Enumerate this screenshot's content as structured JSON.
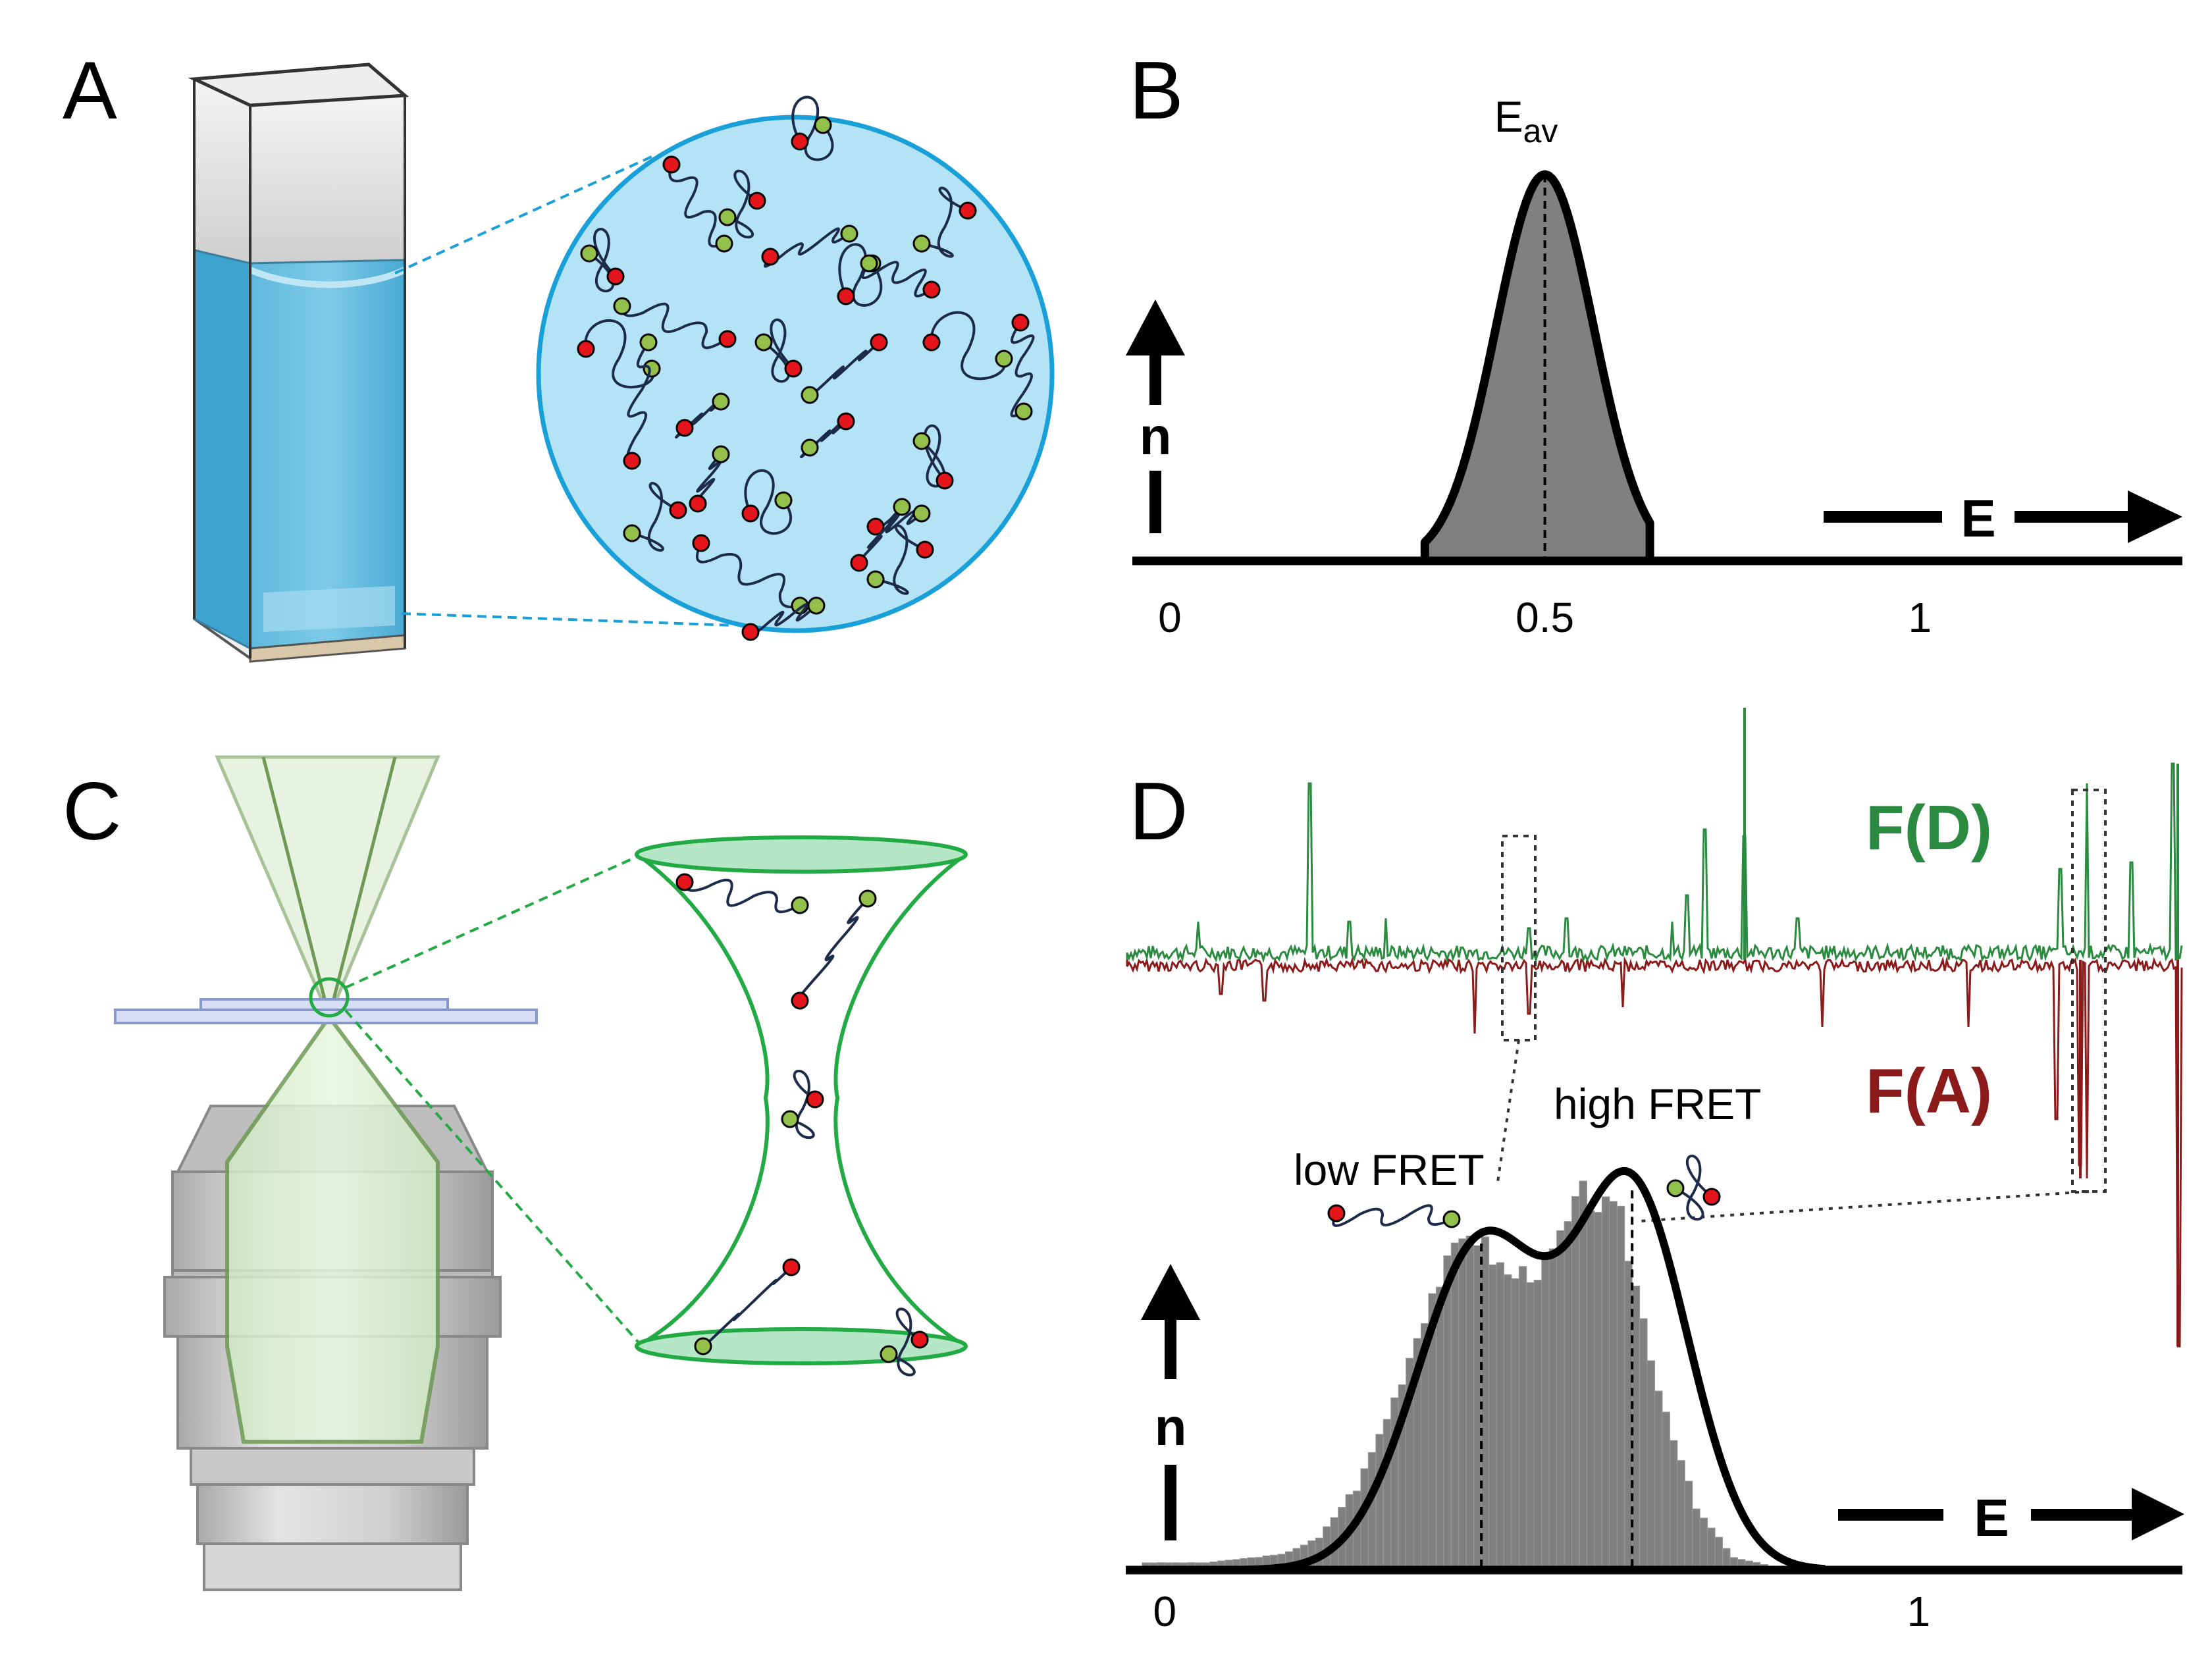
{
  "panels": {
    "a": {
      "label": "A"
    },
    "b": {
      "label": "B",
      "peak_label": "E",
      "peak_label_sub": "av",
      "y_axis": "n",
      "x_axis": "E",
      "ticks": [
        "0",
        "0.5",
        "1"
      ]
    },
    "c": {
      "label": "C"
    },
    "d": {
      "label": "D",
      "donor_trace": "F(D)",
      "acceptor_trace": "F(A)",
      "low_label": "low FRET",
      "high_label": "high FRET",
      "y_axis": "n",
      "x_axis": "E",
      "ticks": [
        "0",
        "1"
      ]
    }
  },
  "colors": {
    "donor": "#2a8a3f",
    "acceptor": "#8b1a1a",
    "solution": "#b3e3f4",
    "solution_edge": "#1aa0d8",
    "focus": "#22aa44",
    "red_dye": "#e4161b",
    "green_dye": "#92c04a",
    "hist_fill": "#808080"
  },
  "chart_data": [
    {
      "type": "area",
      "panel": "B",
      "description_free": true,
      "x": [
        0.34,
        0.38,
        0.42,
        0.46,
        0.5,
        0.54,
        0.58,
        0.62,
        0.64
      ],
      "y": [
        0.0,
        0.12,
        0.45,
        0.86,
        1.0,
        0.86,
        0.45,
        0.09,
        0.0
      ],
      "xlim": [
        -0.05,
        1.35
      ],
      "ticks": [
        "0",
        "0.5",
        "1"
      ]
    },
    {
      "type": "bar",
      "panel": "D",
      "x": [
        0.0,
        0.05,
        0.1,
        0.15,
        0.2,
        0.25,
        0.3,
        0.35,
        0.4,
        0.45,
        0.5,
        0.55,
        0.6,
        0.65,
        0.7,
        0.75,
        0.8,
        0.85,
        0.9,
        0.95,
        1.0
      ],
      "y": [
        0.01,
        0.01,
        0.02,
        0.03,
        0.07,
        0.2,
        0.42,
        0.68,
        0.84,
        0.72,
        0.74,
        0.92,
        0.86,
        0.45,
        0.15,
        0.03,
        0.01,
        0.0,
        0.0,
        0.0,
        0.0
      ],
      "fit_peaks": [
        0.42,
        0.62
      ],
      "xlim": [
        -0.05,
        1.35
      ],
      "ticks": [
        "0",
        "1"
      ]
    }
  ]
}
